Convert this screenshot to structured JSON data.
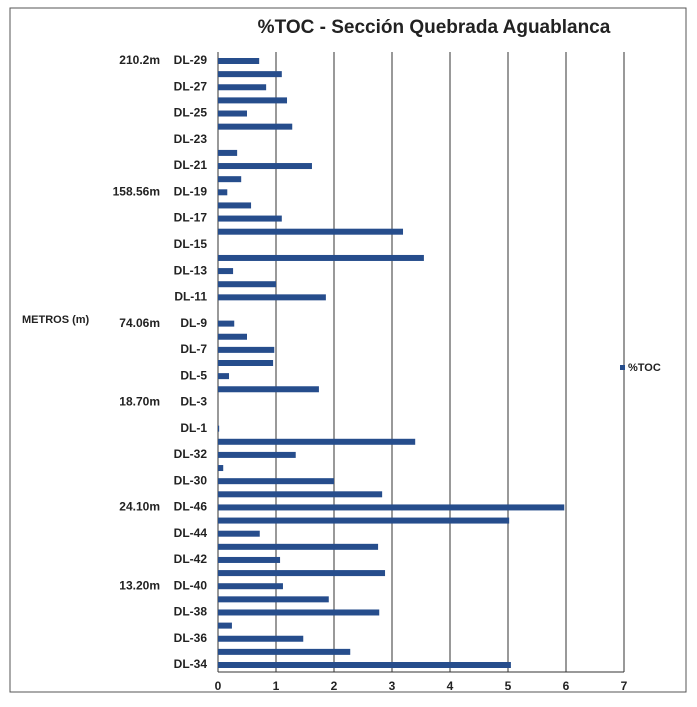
{
  "chart_data": {
    "type": "barh",
    "title": "%TOC  - Sección Quebrada Aguablanca",
    "y_label": "METROS (m)",
    "annotations": [
      "210.2m",
      "158.56m",
      "74.06m",
      "18.70m",
      "24.10m",
      "13.20m"
    ],
    "categories": [
      "DL-29",
      null,
      "DL-27",
      null,
      "DL-25",
      null,
      "DL-23",
      null,
      "DL-21",
      null,
      "DL-19",
      null,
      "DL-17",
      null,
      "DL-15",
      null,
      "DL-13",
      null,
      "DL-11",
      null,
      "DL-9",
      null,
      "DL-7",
      null,
      "DL-5",
      null,
      "DL-3",
      null,
      "DL-1",
      null,
      "DL-32",
      null,
      "DL-30",
      null,
      "DL-46",
      null,
      "DL-44",
      null,
      "DL-42",
      null,
      "DL-40",
      null,
      "DL-38",
      null,
      "DL-36",
      null,
      "DL-34"
    ],
    "series": [
      {
        "name": "%TOC",
        "color": "#264d8c",
        "values": [
          0.71,
          1.1,
          0.83,
          1.19,
          0.5,
          1.28,
          0,
          0.33,
          1.62,
          0.4,
          0.16,
          0.57,
          1.1,
          3.19,
          0,
          3.55,
          0.26,
          1.0,
          1.86,
          0,
          0.28,
          0.5,
          0.97,
          0.95,
          0.19,
          1.74,
          0,
          0,
          0.02,
          3.4,
          1.34,
          0.09,
          2.0,
          2.83,
          5.97,
          5.02,
          0.72,
          2.76,
          1.07,
          2.88,
          1.12,
          1.91,
          2.78,
          0.24,
          1.47,
          2.28,
          5.05
        ]
      }
    ],
    "xlim": [
      0,
      7
    ],
    "xticks": [
      0,
      1,
      2,
      3,
      4,
      5,
      6,
      7
    ],
    "grid": true,
    "legend": "right"
  }
}
